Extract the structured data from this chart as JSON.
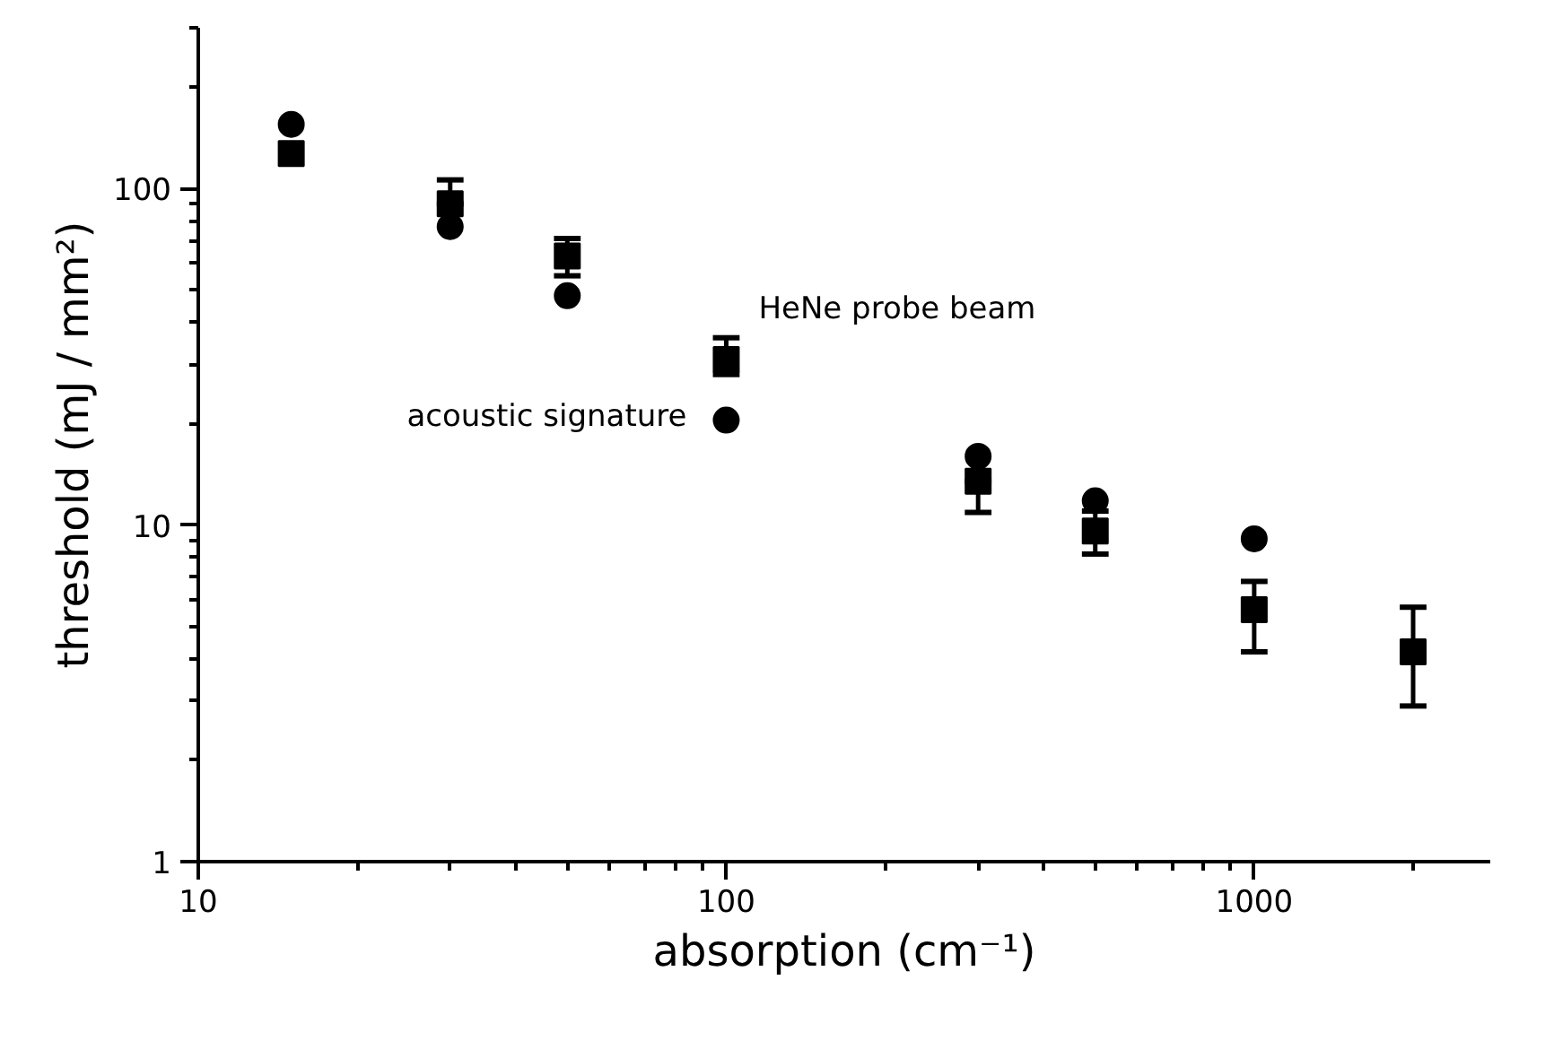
{
  "chart_data": {
    "type": "scatter",
    "xlabel": "absorption (cm⁻¹)",
    "ylabel": "threshold (mJ / mm²)",
    "x": [
      15,
      30,
      50,
      100,
      300,
      500,
      1000,
      2000
    ],
    "series": [
      {
        "name": "acoustic signature",
        "color": "#000000",
        "marker": "circle",
        "values": [
          155,
          77,
          48,
          20.5,
          16,
          11.8,
          9.1,
          null
        ]
      },
      {
        "name": "HeNe probe beam",
        "color": "#000000",
        "marker": "square",
        "values": [
          127,
          90,
          63,
          31,
          13.5,
          9.6,
          5.6,
          4.2
        ],
        "errors": [
          null,
          [
            90,
            106
          ],
          [
            55,
            71
          ],
          [
            28,
            36
          ],
          [
            10.9,
            13.5
          ],
          [
            8.2,
            11
          ],
          [
            4.2,
            6.8
          ],
          [
            2.9,
            5.7
          ]
        ]
      }
    ],
    "log": "xy",
    "xlim": [
      10,
      2800
    ],
    "ylim": [
      1,
      300
    ],
    "xticks": [
      10,
      100,
      1000
    ],
    "yticks": [
      1,
      10,
      100
    ],
    "grid": false
  }
}
